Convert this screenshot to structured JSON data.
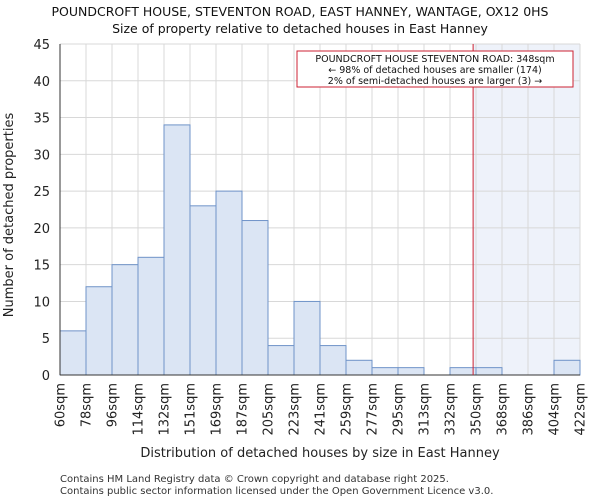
{
  "chart_data": {
    "type": "bar",
    "title": "POUNDCROFT HOUSE, STEVENTON ROAD, EAST HANNEY, WANTAGE, OX12 0HS",
    "subtitle": "Size of property relative to detached houses in East Hanney",
    "xlabel": "Distribution of detached houses by size in East Hanney",
    "ylabel": "Number of detached properties",
    "bin_edges": [
      60,
      78,
      96,
      114,
      132,
      151,
      169,
      187,
      205,
      223,
      241,
      259,
      277,
      295,
      313,
      332,
      350,
      368,
      386,
      404,
      422
    ],
    "tick_labels": [
      "60sqm",
      "78sqm",
      "96sqm",
      "114sqm",
      "132sqm",
      "151sqm",
      "169sqm",
      "187sqm",
      "205sqm",
      "223sqm",
      "241sqm",
      "259sqm",
      "277sqm",
      "295sqm",
      "313sqm",
      "332sqm",
      "350sqm",
      "368sqm",
      "386sqm",
      "404sqm",
      "422sqm"
    ],
    "values": [
      6,
      12,
      15,
      16,
      34,
      23,
      25,
      21,
      4,
      10,
      4,
      2,
      1,
      1,
      0,
      1,
      1,
      0,
      0,
      2
    ],
    "ylim": [
      0,
      45
    ],
    "yticks": [
      0,
      5,
      10,
      15,
      20,
      25,
      30,
      35,
      40,
      45
    ],
    "grid": true,
    "property_marker_sqm": 348,
    "annotation": {
      "line1": "POUNDCROFT HOUSE STEVENTON ROAD: 348sqm",
      "line2": "← 98% of detached houses are smaller (174)",
      "line3": "2% of semi-detached houses are larger (3) →"
    },
    "colors": {
      "bar_fill": "#dbe5f4",
      "bar_stroke": "#6f93c8",
      "marker": "#cc2233",
      "highlight": "#eef2fa",
      "grid": "#d8d8d8"
    }
  },
  "footer": {
    "line1": "Contains HM Land Registry data © Crown copyright and database right 2025.",
    "line2": "Contains public sector information licensed under the Open Government Licence v3.0."
  }
}
